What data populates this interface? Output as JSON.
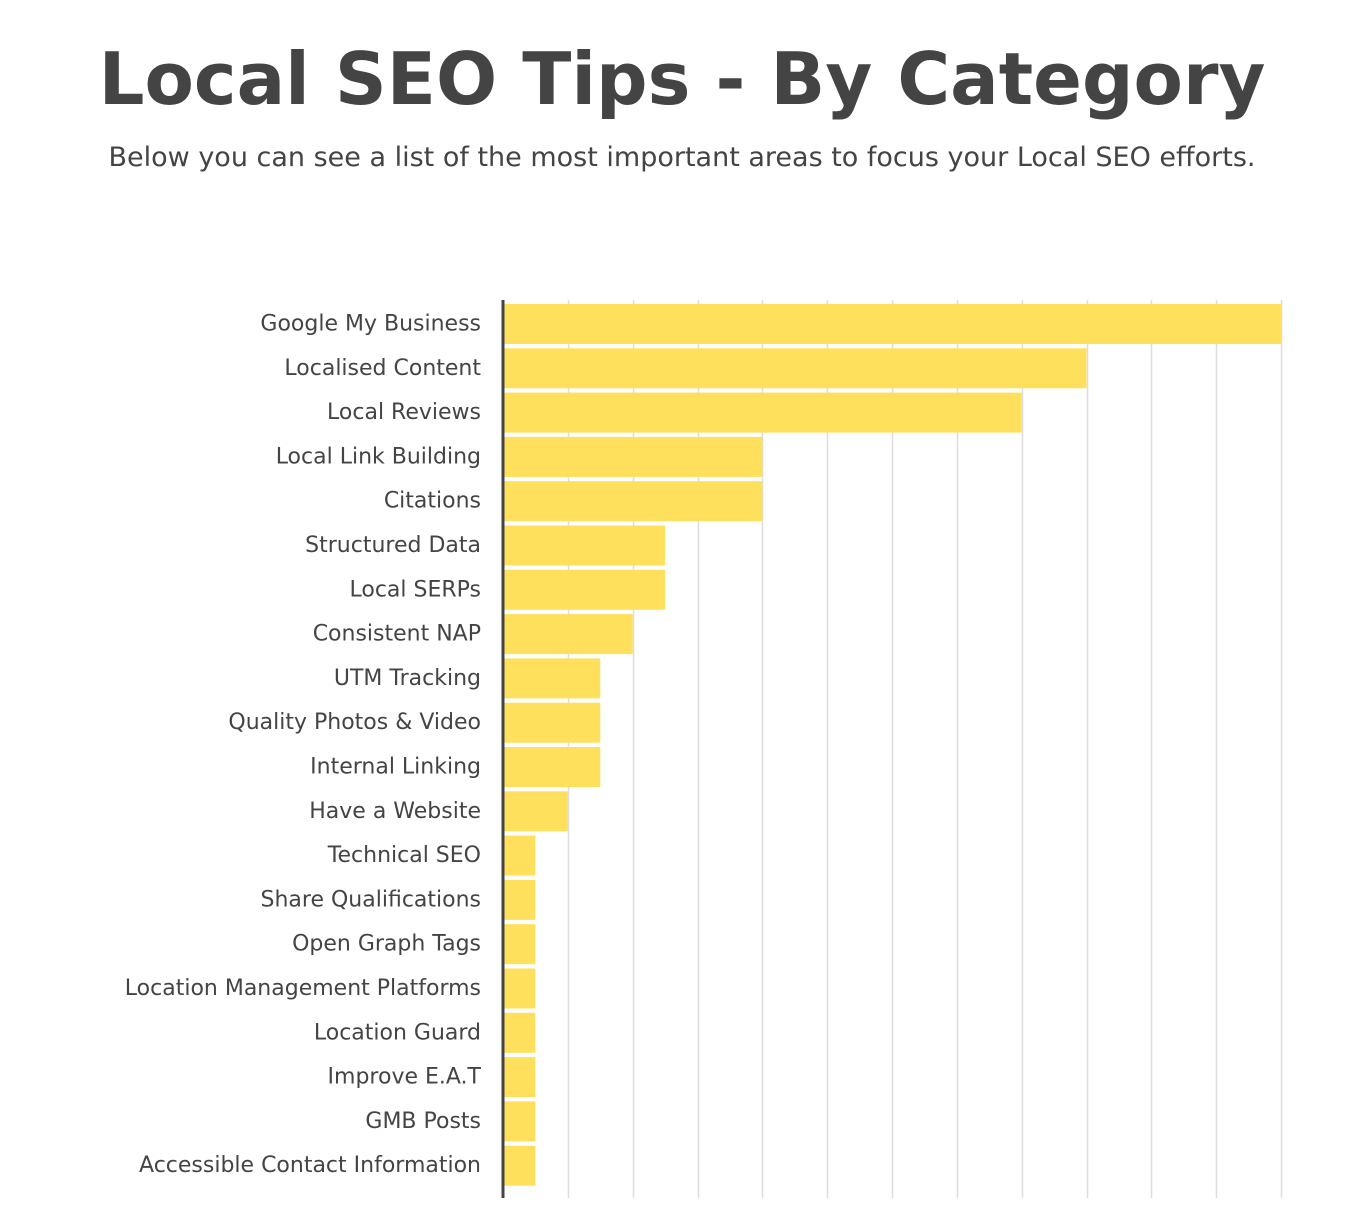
{
  "header": {
    "title": "Local SEO Tips - By Category",
    "subtitle": "Below you can see a list of the most important areas to focus your Local SEO efforts."
  },
  "colors": {
    "bar": "#FFE05C",
    "text": "#444444",
    "grid": "#DDDDDD",
    "axis": "#444444"
  },
  "chart_data": {
    "type": "bar",
    "orientation": "horizontal",
    "title": "",
    "xlabel": "",
    "ylabel": "",
    "categories": [
      "Google My Business",
      "Localised Content",
      "Local Reviews",
      "Local Link Building",
      "Citations",
      "Structured Data",
      "Local SERPs",
      "Consistent NAP",
      "UTM Tracking",
      "Quality Photos & Video",
      "Internal Linking",
      "Have a Website",
      "Technical SEO",
      "Share Qualifications",
      "Open Graph Tags",
      "Location Management Platforms",
      "Location Guard",
      "Improve E.A.T",
      "GMB Posts",
      "Accessible Contact Information"
    ],
    "values": [
      24,
      18,
      16,
      8,
      8,
      5,
      5,
      4,
      3,
      3,
      3,
      2,
      1,
      1,
      1,
      1,
      1,
      1,
      1,
      1
    ],
    "xlim": [
      0,
      24
    ],
    "grid": true,
    "legend": "none"
  }
}
